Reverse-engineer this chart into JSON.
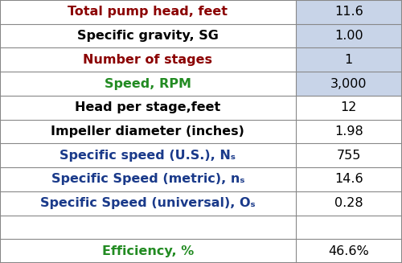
{
  "rows": [
    {
      "label": "Total pump head, feet",
      "value": "11.6",
      "label_color": "#8B0000",
      "val_bg": "#C8D4E8"
    },
    {
      "label": "Specific gravity, SG",
      "value": "1.00",
      "label_color": "#000000",
      "val_bg": "#C8D4E8"
    },
    {
      "label": "Number of stages",
      "value": "1",
      "label_color": "#8B0000",
      "val_bg": "#C8D4E8"
    },
    {
      "label": "Speed, RPM",
      "value": "3,000",
      "label_color": "#228B22",
      "val_bg": "#C8D4E8"
    },
    {
      "label": "Head per stage,feet",
      "value": "12",
      "label_color": "#000000",
      "val_bg": "#FFFFFF"
    },
    {
      "label": "Impeller diameter (inches)",
      "value": "1.98",
      "label_color": "#000000",
      "val_bg": "#FFFFFF"
    },
    {
      "label": "Specific speed (U.S.), Nₛ",
      "value": "755",
      "label_color": "#1A3A8A",
      "val_bg": "#FFFFFF"
    },
    {
      "label": "Specific Speed (metric), nₛ",
      "value": "14.6",
      "label_color": "#1A3A8A",
      "val_bg": "#FFFFFF"
    },
    {
      "label": "Specific Speed (universal), Oₛ",
      "value": "0.28",
      "label_color": "#1A3A8A",
      "val_bg": "#FFFFFF"
    },
    {
      "label": "",
      "value": "",
      "label_color": "#000000",
      "val_bg": "#FFFFFF"
    },
    {
      "label": "Efficiency, %",
      "value": "46.6%",
      "label_color": "#228B22",
      "val_bg": "#FFFFFF"
    }
  ],
  "col_split": 0.735,
  "label_bg": "#FFFFFF",
  "border_color": "#888888",
  "value_fontsize": 11.5,
  "label_fontsize": 11.5,
  "fig_width": 5.0,
  "fig_height": 3.27,
  "dpi": 100
}
